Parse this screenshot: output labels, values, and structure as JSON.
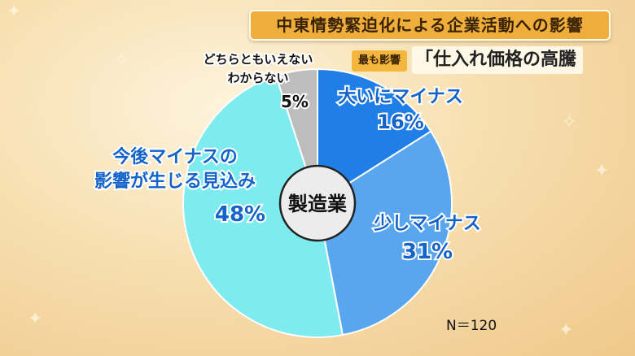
{
  "header": {
    "title": "中東情勢緊迫化による企業活動への影響",
    "tag": "最も影響",
    "highlight": "「仕入れ価格の高騰"
  },
  "chart_data": {
    "type": "pie",
    "center_label": "製造業",
    "sample_size": "N＝120",
    "slices": [
      {
        "label_lines": [
          "大いにマイナス"
        ],
        "value": 16,
        "value_label": "16%",
        "color": "#1f7fe6"
      },
      {
        "label_lines": [
          "少しマイナス"
        ],
        "value": 31,
        "value_label": "31%",
        "color": "#5aa6ee"
      },
      {
        "label_lines": [
          "今後マイナスの",
          "影響が生じる見込み"
        ],
        "value": 48,
        "value_label": "48%",
        "color": "#7eecef"
      },
      {
        "label_lines": [
          "どちらともいえない",
          "わからない"
        ],
        "value": 5,
        "value_label": "5%",
        "color": "#bdbdbd"
      }
    ]
  }
}
